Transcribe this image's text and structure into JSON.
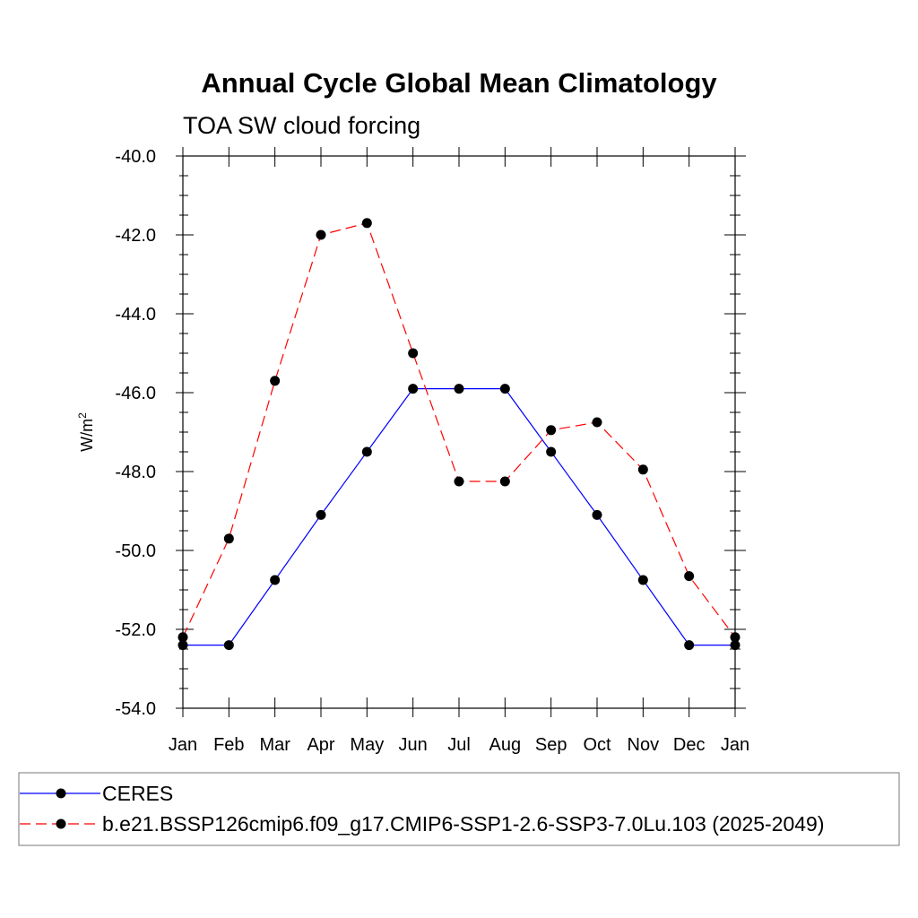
{
  "chart_data": {
    "type": "line",
    "title": "Annual Cycle Global Mean Climatology",
    "subtitle": "TOA SW cloud forcing",
    "ylabel_base": "W/m",
    "ylabel_superscript": "2",
    "categories": [
      "Jan",
      "Feb",
      "Mar",
      "Apr",
      "May",
      "Jun",
      "Jul",
      "Aug",
      "Sep",
      "Oct",
      "Nov",
      "Dec",
      "Jan"
    ],
    "ylim": [
      -54.0,
      -40.0
    ],
    "yticks": [
      "-40.0",
      "-42.0",
      "-44.0",
      "-46.0",
      "-48.0",
      "-50.0",
      "-52.0",
      "-54.0"
    ],
    "ytick_values": [
      -40,
      -42,
      -44,
      -46,
      -48,
      -50,
      -52,
      -54
    ],
    "legend_position": "bottom",
    "grid": false,
    "series": [
      {
        "name": "CERES",
        "color": "#0000ff",
        "dash": "solid",
        "marker": "filled-circle",
        "values": [
          -52.4,
          -52.4,
          -50.75,
          -49.1,
          -47.5,
          -45.9,
          -45.9,
          -45.9,
          -47.5,
          -49.1,
          -50.75,
          -52.4,
          -52.4
        ]
      },
      {
        "name": "b.e21.BSSP126cmip6.f09_g17.CMIP6-SSP1-2.6-SSP3-7.0Lu.103 (2025-2049)",
        "color": "#ff0000",
        "dash": "dashed",
        "marker": "filled-circle",
        "values": [
          -52.2,
          -49.7,
          -45.7,
          -42.0,
          -41.7,
          -45.0,
          -48.25,
          -48.25,
          -46.95,
          -46.75,
          -47.95,
          -50.65,
          -52.2
        ]
      }
    ]
  }
}
